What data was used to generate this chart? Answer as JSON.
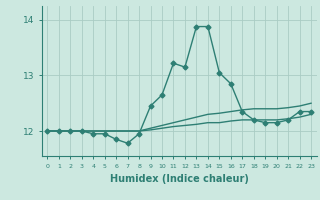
{
  "x_values": [
    0,
    1,
    2,
    3,
    4,
    5,
    6,
    7,
    8,
    9,
    10,
    11,
    12,
    13,
    14,
    15,
    16,
    17,
    18,
    19,
    20,
    21,
    22,
    23
  ],
  "line1_y": [
    12.0,
    12.0,
    12.0,
    12.0,
    11.95,
    11.95,
    11.85,
    11.78,
    11.95,
    12.45,
    12.65,
    13.22,
    13.15,
    13.88,
    13.88,
    13.05,
    12.85,
    12.35,
    12.2,
    12.15,
    12.15,
    12.2,
    12.35,
    12.35
  ],
  "line2_y": [
    12.0,
    12.0,
    12.0,
    12.0,
    12.0,
    12.0,
    12.0,
    12.0,
    12.0,
    12.05,
    12.1,
    12.15,
    12.2,
    12.25,
    12.3,
    12.32,
    12.35,
    12.38,
    12.4,
    12.4,
    12.4,
    12.42,
    12.45,
    12.5
  ],
  "line3_y": [
    12.0,
    12.0,
    12.0,
    12.0,
    12.0,
    12.0,
    12.0,
    12.0,
    12.0,
    12.02,
    12.05,
    12.08,
    12.1,
    12.12,
    12.15,
    12.15,
    12.18,
    12.2,
    12.2,
    12.2,
    12.2,
    12.22,
    12.25,
    12.3
  ],
  "line_color": "#2e7f74",
  "background_color": "#cce8e0",
  "grid_color": "#aaccC4",
  "xlabel": "Humidex (Indice chaleur)",
  "xlabel_fontsize": 7,
  "ylabel_ticks": [
    12,
    13,
    14
  ],
  "xlim": [
    -0.5,
    23.5
  ],
  "ylim": [
    11.55,
    14.25
  ],
  "marker": "D",
  "markersize": 2.5,
  "linewidth": 1.0
}
